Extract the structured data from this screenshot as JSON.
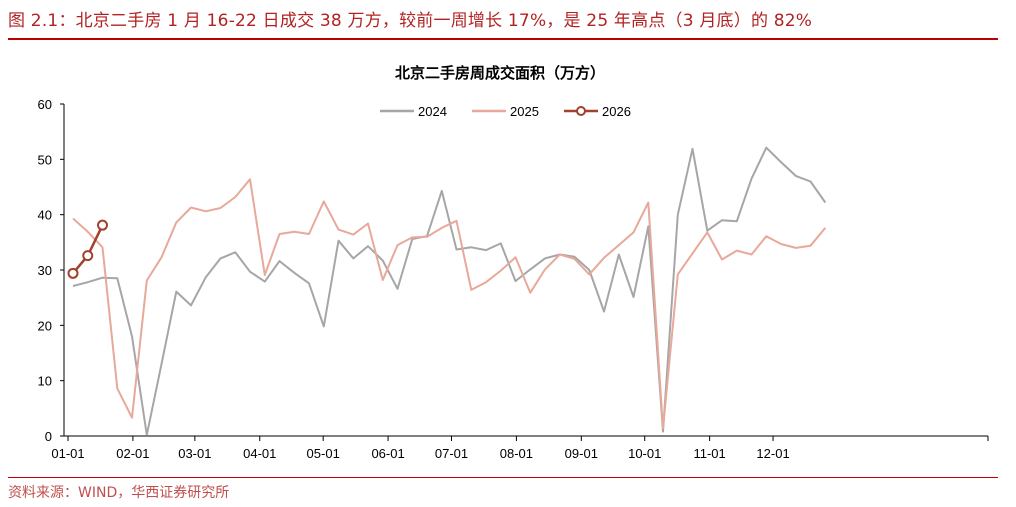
{
  "figure": {
    "heading": "图 2.1：北京二手房 1 月 16-22 日成交 38 万方，较前一周增长 17%，是 25 年高点（3 月底）的 82%",
    "source": "资料来源：WIND，华西证券研究所"
  },
  "chart_data": {
    "type": "line",
    "title": "北京二手房周成交面积（万方）",
    "xlabel": "",
    "ylabel": "",
    "ylim": [
      0,
      60
    ],
    "yticks": [
      "0",
      "10",
      "20",
      "30",
      "40",
      "50",
      "60"
    ],
    "xticks": [
      "01-01",
      "02-01",
      "03-01",
      "04-01",
      "05-01",
      "06-01",
      "07-01",
      "08-01",
      "09-01",
      "10-01",
      "11-01",
      "12-01"
    ],
    "x_unit": "week",
    "grid": false,
    "legend_position": "top-center",
    "series": [
      {
        "name": "2024",
        "color": "#a6a6a6",
        "markers": false,
        "values": [
          27.1,
          27.8,
          28.6,
          28.5,
          18.0,
          0.2,
          13.0,
          26.1,
          23.6,
          28.7,
          32.1,
          33.2,
          29.7,
          27.9,
          31.6,
          29.5,
          27.6,
          19.8,
          35.3,
          32.1,
          34.3,
          31.7,
          26.6,
          35.6,
          36.1,
          44.3,
          33.7,
          34.1,
          33.6,
          34.8,
          28.0,
          30.1,
          32.1,
          32.8,
          32.4,
          30.0,
          22.5,
          32.8,
          25.1,
          37.9,
          0.8,
          40.0,
          51.9,
          37.1,
          39.0,
          38.8,
          46.5,
          52.1,
          49.5,
          47.0,
          46.0,
          42.2
        ]
      },
      {
        "name": "2025",
        "color": "#e8a89a",
        "markers": false,
        "values": [
          39.3,
          36.9,
          34.1,
          8.6,
          3.3,
          28.1,
          32.3,
          38.6,
          41.3,
          40.6,
          41.2,
          43.2,
          46.4,
          29.1,
          36.5,
          36.9,
          36.5,
          42.4,
          37.3,
          36.4,
          38.4,
          28.2,
          34.5,
          35.9,
          36.0,
          37.6,
          38.9,
          26.4,
          27.8,
          29.9,
          32.3,
          25.9,
          30.1,
          32.8,
          32.0,
          29.2,
          32.2,
          34.5,
          36.8,
          42.2,
          1.4,
          29.2,
          33.0,
          36.8,
          31.9,
          33.5,
          32.8,
          36.1,
          34.7,
          34.0,
          34.4,
          37.6
        ]
      },
      {
        "name": "2026",
        "color": "#a0422c",
        "markers": true,
        "values": [
          29.4,
          32.6,
          38.1
        ]
      }
    ]
  }
}
